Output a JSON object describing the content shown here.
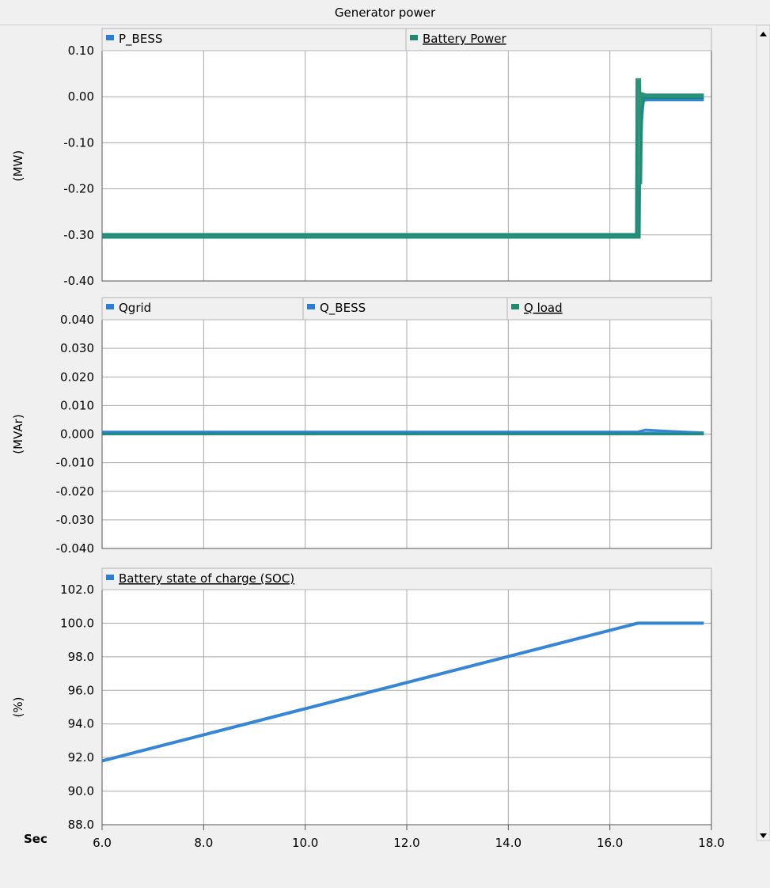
{
  "window": {
    "title": "Generator power"
  },
  "x_axis": {
    "label": "Sec",
    "min": 6.0,
    "max": 18.0,
    "ticks": [
      6.0,
      8.0,
      10.0,
      12.0,
      14.0,
      16.0,
      18.0
    ],
    "tick_labels": [
      "6.0",
      "8.0",
      "10.0",
      "12.0",
      "14.0",
      "16.0",
      "18.0"
    ]
  },
  "colors": {
    "blue": "#2a7fd4",
    "teal": "#1f8a70",
    "grid": "#a9a9a9"
  },
  "chart_data": [
    {
      "type": "line",
      "ylabel": "(MW)",
      "ylim": [
        -0.4,
        0.1
      ],
      "yticks": [
        0.1,
        0.0,
        -0.1,
        -0.2,
        -0.3,
        -0.4
      ],
      "ytick_labels": [
        "0.10",
        "0.00",
        "-0.10",
        "-0.20",
        "-0.30",
        "-0.40"
      ],
      "grid": true,
      "legend_position": "top",
      "series": [
        {
          "name": "P_BESS",
          "color": "#2a7fd4",
          "underlined": false,
          "x": [
            6.0,
            16.55,
            16.56,
            16.6,
            16.63,
            16.66,
            16.75,
            17.85
          ],
          "y": [
            -0.302,
            -0.302,
            -0.15,
            -0.05,
            -0.01,
            -0.005,
            -0.004,
            -0.004
          ]
        },
        {
          "name": "Battery Power",
          "color": "#1f8a70",
          "underlined": true,
          "x": [
            6.0,
            16.55,
            16.56,
            16.58,
            16.6,
            16.62,
            16.65,
            16.7,
            17.85
          ],
          "y": [
            -0.302,
            -0.302,
            0.04,
            -0.19,
            0.0,
            -0.02,
            0.003,
            0.001,
            0.001
          ]
        }
      ]
    },
    {
      "type": "line",
      "ylabel": "(MVAr)",
      "ylim": [
        -0.04,
        0.04
      ],
      "yticks": [
        0.04,
        0.03,
        0.02,
        0.01,
        0.0,
        -0.01,
        -0.02,
        -0.03,
        -0.04
      ],
      "ytick_labels": [
        "0.040",
        "0.030",
        "0.020",
        "0.010",
        "0.000",
        "-0.010",
        "-0.020",
        "-0.030",
        "-0.040"
      ],
      "grid": true,
      "legend_position": "top",
      "series": [
        {
          "name": "Qgrid",
          "color": "#2a7fd4",
          "underlined": false,
          "x": [
            6.0,
            17.85
          ],
          "y": [
            0.0005,
            0.0005
          ]
        },
        {
          "name": "Q_BESS",
          "color": "#2a7fd4",
          "underlined": false,
          "x": [
            6.0,
            16.55,
            16.7,
            17.2,
            17.85
          ],
          "y": [
            0.0008,
            0.0008,
            0.0015,
            0.001,
            0.0005
          ]
        },
        {
          "name": "Q load",
          "color": "#1f8a70",
          "underlined": true,
          "x": [
            6.0,
            17.85
          ],
          "y": [
            0.0,
            0.0
          ]
        }
      ]
    },
    {
      "type": "line",
      "ylabel": "(%)",
      "ylim": [
        88.0,
        102.0
      ],
      "yticks": [
        102.0,
        100.0,
        98.0,
        96.0,
        94.0,
        92.0,
        90.0,
        88.0
      ],
      "ytick_labels": [
        "102.0",
        "100.0",
        "98.0",
        "96.0",
        "94.0",
        "92.0",
        "90.0",
        "88.0"
      ],
      "grid": true,
      "legend_position": "top",
      "series": [
        {
          "name": "Battery state of charge (SOC)",
          "color": "#2a7fd4",
          "underlined": true,
          "x": [
            6.0,
            16.55,
            17.85
          ],
          "y": [
            91.8,
            100.0,
            100.0
          ]
        }
      ]
    }
  ]
}
